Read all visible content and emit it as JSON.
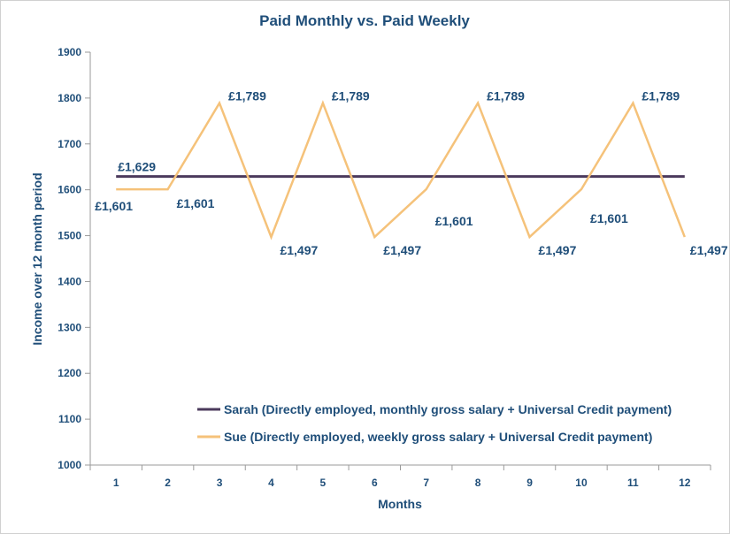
{
  "chart_data": {
    "type": "line",
    "title": "Paid Monthly vs. Paid Weekly",
    "xlabel": "Months",
    "ylabel": "Income over 12 month period",
    "x": [
      1,
      2,
      3,
      4,
      5,
      6,
      7,
      8,
      9,
      10,
      11,
      12
    ],
    "x_tick_labels": [
      "1",
      "2",
      "3",
      "4",
      "5",
      "6",
      "7",
      "8",
      "9",
      "10",
      "11",
      "12"
    ],
    "ylim": [
      1000,
      1900
    ],
    "y_ticks": [
      1000,
      1100,
      1200,
      1300,
      1400,
      1500,
      1600,
      1700,
      1800,
      1900
    ],
    "y_tick_labels": [
      "1000",
      "1100",
      "1200",
      "1300",
      "1400",
      "1500",
      "1600",
      "1700",
      "1800",
      "1900"
    ],
    "grid": false,
    "legend_position": "bottom-right",
    "series": [
      {
        "name": "Sarah (Directly employed, monthly gross salary + Universal Credit payment)",
        "color": "#4b3a5c",
        "values": [
          1629,
          1629,
          1629,
          1629,
          1629,
          1629,
          1629,
          1629,
          1629,
          1629,
          1629,
          1629
        ],
        "data_labels": [
          {
            "index": 0,
            "text": "£1,629"
          }
        ]
      },
      {
        "name": "Sue (Directly employed, weekly gross salary + Universal Credit payment)",
        "color": "#f5c27a",
        "values": [
          1601,
          1601,
          1789,
          1497,
          1789,
          1497,
          1601,
          1789,
          1497,
          1601,
          1789,
          1497
        ],
        "data_labels": [
          {
            "index": 0,
            "text": "£1,601"
          },
          {
            "index": 1,
            "text": "£1,601"
          },
          {
            "index": 2,
            "text": "£1,789"
          },
          {
            "index": 3,
            "text": "£1,497"
          },
          {
            "index": 4,
            "text": "£1,789"
          },
          {
            "index": 5,
            "text": "£1,497"
          },
          {
            "index": 6,
            "text": "£1,601"
          },
          {
            "index": 7,
            "text": "£1,789"
          },
          {
            "index": 8,
            "text": "£1,497"
          },
          {
            "index": 9,
            "text": "£1,601"
          },
          {
            "index": 10,
            "text": "£1,789"
          },
          {
            "index": 11,
            "text": "£1,497"
          }
        ]
      }
    ]
  }
}
